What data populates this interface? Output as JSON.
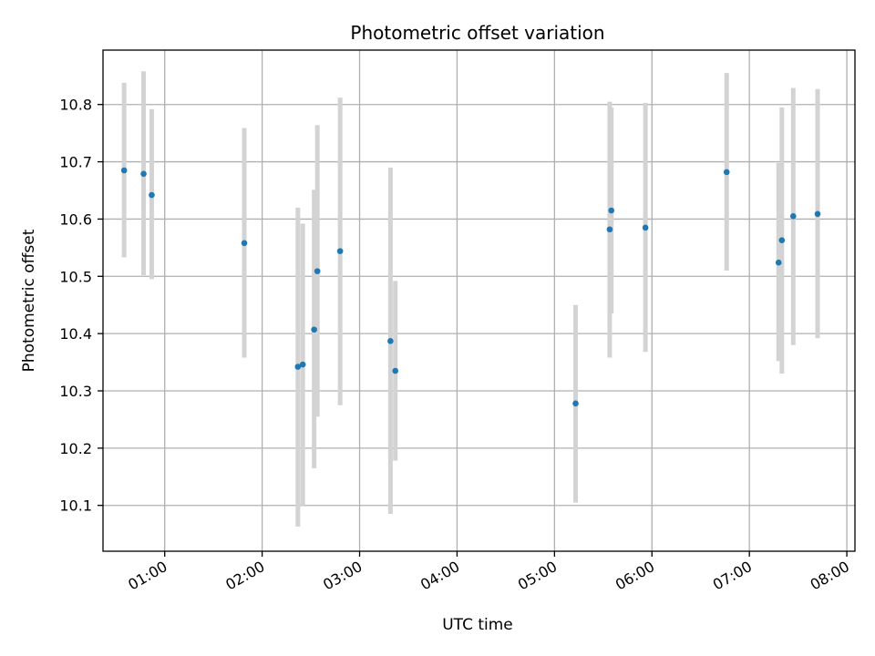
{
  "chart_data": {
    "type": "scatter",
    "title": "Photometric offset variation",
    "xlabel": "UTC time",
    "ylabel": "Photometric offset",
    "x_axis": {
      "kind": "time",
      "range": [
        "00:22",
        "08:05"
      ],
      "ticks": [
        "01:00",
        "02:00",
        "03:00",
        "04:00",
        "05:00",
        "06:00",
        "07:00",
        "08:00"
      ]
    },
    "y_axis": {
      "range": [
        10.02,
        10.895
      ],
      "ticks": [
        "10.1",
        "10.2",
        "10.3",
        "10.4",
        "10.5",
        "10.6",
        "10.7",
        "10.8"
      ]
    },
    "grid": true,
    "colors": {
      "marker": "#1f77b4",
      "errorbar": "#d3d3d3",
      "grid": "#b0b0b0"
    },
    "points": [
      {
        "time": "00:35",
        "y": 10.685,
        "ylo": 10.533,
        "yhi": 10.838
      },
      {
        "time": "00:47",
        "y": 10.679,
        "ylo": 10.502,
        "yhi": 10.858
      },
      {
        "time": "00:52",
        "y": 10.642,
        "ylo": 10.495,
        "yhi": 10.792
      },
      {
        "time": "01:49",
        "y": 10.558,
        "ylo": 10.358,
        "yhi": 10.759
      },
      {
        "time": "02:22",
        "y": 10.342,
        "ylo": 10.063,
        "yhi": 10.62
      },
      {
        "time": "02:25",
        "y": 10.346,
        "ylo": 10.1,
        "yhi": 10.592
      },
      {
        "time": "02:32",
        "y": 10.407,
        "ylo": 10.165,
        "yhi": 10.651
      },
      {
        "time": "02:34",
        "y": 10.509,
        "ylo": 10.255,
        "yhi": 10.764
      },
      {
        "time": "02:48",
        "y": 10.544,
        "ylo": 10.275,
        "yhi": 10.812
      },
      {
        "time": "03:19",
        "y": 10.387,
        "ylo": 10.085,
        "yhi": 10.69
      },
      {
        "time": "03:22",
        "y": 10.335,
        "ylo": 10.178,
        "yhi": 10.492
      },
      {
        "time": "05:13",
        "y": 10.278,
        "ylo": 10.105,
        "yhi": 10.45
      },
      {
        "time": "05:34",
        "y": 10.582,
        "ylo": 10.358,
        "yhi": 10.805
      },
      {
        "time": "05:35",
        "y": 10.615,
        "ylo": 10.435,
        "yhi": 10.795
      },
      {
        "time": "05:56",
        "y": 10.585,
        "ylo": 10.368,
        "yhi": 10.803
      },
      {
        "time": "06:46",
        "y": 10.682,
        "ylo": 10.51,
        "yhi": 10.855
      },
      {
        "time": "07:18",
        "y": 10.524,
        "ylo": 10.352,
        "yhi": 10.698
      },
      {
        "time": "07:20",
        "y": 10.563,
        "ylo": 10.33,
        "yhi": 10.795
      },
      {
        "time": "07:27",
        "y": 10.605,
        "ylo": 10.38,
        "yhi": 10.829
      },
      {
        "time": "07:42",
        "y": 10.609,
        "ylo": 10.392,
        "yhi": 10.827
      }
    ]
  }
}
